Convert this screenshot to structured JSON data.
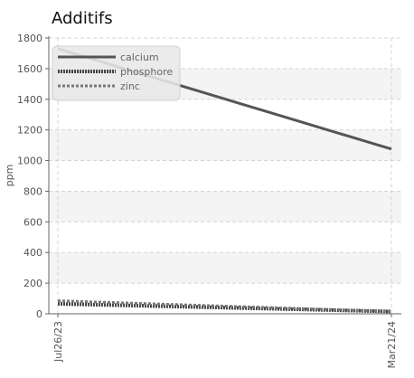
{
  "chart_data": {
    "type": "line",
    "title": "Additifs",
    "xlabel": "",
    "ylabel": "ppm",
    "x": [
      "Jul26/23",
      "Mar21/24"
    ],
    "ylim": [
      0,
      1800
    ],
    "yticks": [
      0,
      200,
      400,
      600,
      800,
      1000,
      1200,
      1400,
      1600,
      1800
    ],
    "grid": true,
    "legend_position": "top-left",
    "series": [
      {
        "name": "calcium",
        "values": [
          1730,
          1075
        ],
        "color": "#555555",
        "style": "solid"
      },
      {
        "name": "phosphore",
        "values": [
          65,
          15
        ],
        "color": "#444444",
        "style": "dotted"
      },
      {
        "name": "zinc",
        "values": [
          85,
          15
        ],
        "color": "#777777",
        "style": "dashed"
      }
    ]
  }
}
